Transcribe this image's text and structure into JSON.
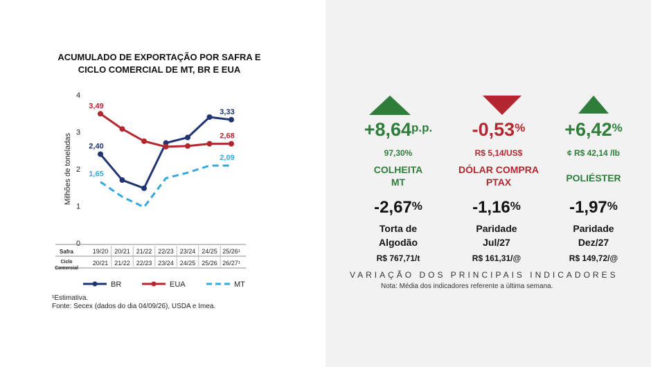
{
  "chart": {
    "title_line1": "ACUMULADO DE EXPORTAÇÃO POR SAFRA E",
    "title_line2": "CICLO COMERCIAL DE MT, BR E EUA",
    "ylabel": "Milhões de toneladas",
    "footnote": "¹Estimativa.",
    "source": "Fonte: Secex (dados do dia 04/09/26), USDA e Imea."
  },
  "chart_data": {
    "type": "line",
    "title": "ACUMULADO DE EXPORTAÇÃO POR SAFRA E CICLO COMERCIAL DE MT, BR E EUA",
    "ylabel": "Milhões de toneladas",
    "ylim": [
      0,
      4
    ],
    "yticks": [
      "0",
      "1",
      "2",
      "3",
      "4"
    ],
    "row_labels": [
      "Safra",
      "Ciclo Comercial"
    ],
    "categories_safra": [
      "19/20",
      "20/21",
      "21/22",
      "22/23",
      "23/24",
      "24/25",
      "25/26¹"
    ],
    "categories_ciclo": [
      "20/21",
      "21/22",
      "22/23",
      "23/24",
      "24/25",
      "25/26",
      "26/27¹"
    ],
    "grid": false,
    "legend_position": "bottom",
    "series": [
      {
        "name": "BR",
        "color": "#1f3470",
        "style": "solid",
        "values": [
          2.4,
          1.7,
          1.48,
          2.7,
          2.85,
          3.4,
          3.33
        ],
        "labels": [
          "2,40",
          "",
          "",
          "",
          "",
          "",
          "3,33"
        ]
      },
      {
        "name": "EUA",
        "color": "#b3262f",
        "style": "solid",
        "values": [
          3.49,
          3.08,
          2.75,
          2.6,
          2.62,
          2.68,
          2.68
        ],
        "labels": [
          "3,49",
          "",
          "",
          "",
          "",
          "",
          "2,68"
        ]
      },
      {
        "name": "MT",
        "color": "#33a8dc",
        "style": "dashed",
        "values": [
          1.65,
          1.25,
          0.97,
          1.75,
          1.9,
          2.09,
          2.09
        ],
        "labels": [
          "1,65",
          "",
          "",
          "",
          "",
          "",
          "2,09"
        ]
      }
    ]
  },
  "indicators": [
    {
      "value": "+8,64",
      "suffix": "p.p.",
      "sub": "97,30%",
      "label_line1": "COLHEITA",
      "label_line2": "MT",
      "direction": "up",
      "color": "#2e7d3a"
    },
    {
      "value": "-0,53",
      "suffix": "%",
      "sub": "R$ 5,14/US$",
      "label_line1": "DÓLAR COMPRA",
      "label_line2": "PTAX",
      "direction": "down",
      "color": "#b3262f"
    },
    {
      "value": "+6,42",
      "suffix": "%",
      "sub": "¢ R$ 42,14 /lb",
      "label_line1": "POLIÉSTER",
      "label_line2": "",
      "direction": "up",
      "color": "#2e7d3a"
    }
  ],
  "lower": [
    {
      "value": "-2,67",
      "suffix": "%",
      "label_line1": "Torta de",
      "label_line2": "Algodão",
      "price": "R$ 767,71/t"
    },
    {
      "value": "-1,16",
      "suffix": "%",
      "label_line1": "Paridade",
      "label_line2": "Jul/27",
      "price": "R$ 161,31/@"
    },
    {
      "value": "-1,97",
      "suffix": "%",
      "label_line1": "Paridade",
      "label_line2": "Dez/27",
      "price": "R$ 149,72/@"
    }
  ],
  "footer": {
    "title": "VARIAÇÃO DOS PRINCIPAIS INDICADORES",
    "note": "Nota: Média dos indicadores referente a última semana."
  }
}
